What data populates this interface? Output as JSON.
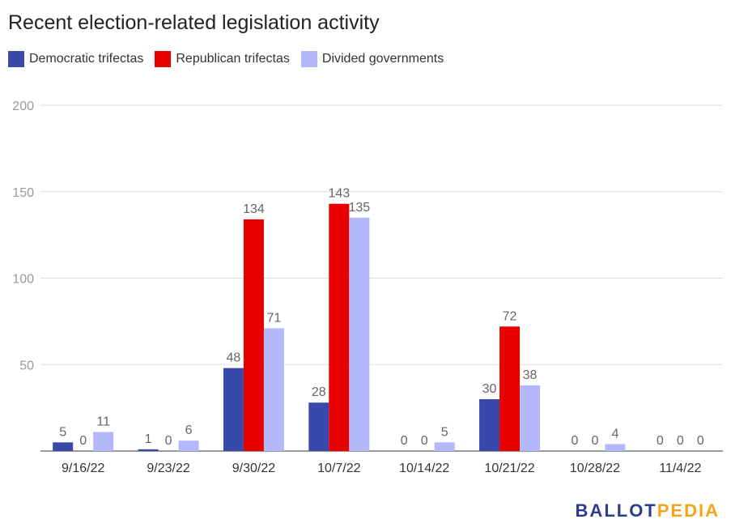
{
  "chart_data": {
    "type": "bar",
    "title": "Recent election-related legislation activity",
    "categories": [
      "9/16/22",
      "9/23/22",
      "9/30/22",
      "10/7/22",
      "10/14/22",
      "10/21/22",
      "10/28/22",
      "11/4/22"
    ],
    "series": [
      {
        "name": "Democratic trifectas",
        "color": "#3949ab",
        "values": [
          5,
          1,
          48,
          28,
          0,
          30,
          0,
          0
        ]
      },
      {
        "name": "Republican trifectas",
        "color": "#e60000",
        "values": [
          0,
          0,
          134,
          143,
          0,
          72,
          0,
          0
        ]
      },
      {
        "name": "Divided governments",
        "color": "#b3b8fb",
        "values": [
          11,
          6,
          71,
          135,
          5,
          38,
          4,
          0
        ]
      }
    ],
    "yticks": [
      50,
      100,
      150,
      200
    ],
    "ylim": [
      0,
      200
    ],
    "grid": true,
    "legend_position": "top-left"
  },
  "branding": {
    "part1": "BALLOT",
    "part2": "PEDIA"
  }
}
